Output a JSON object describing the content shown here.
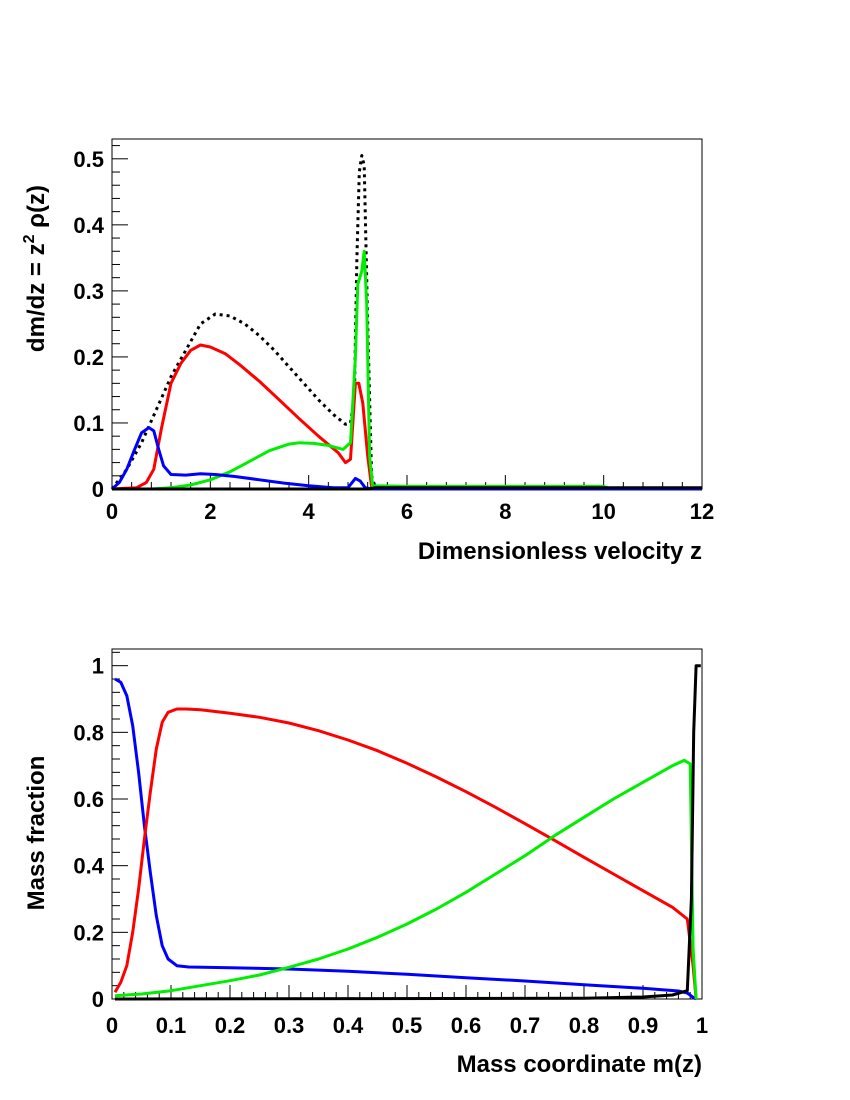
{
  "chart_data": [
    {
      "type": "line",
      "title": "",
      "xlabel": "Dimensionless velocity z",
      "ylabel_main": "dm/dz = z",
      "ylabel_sup": "2",
      "ylabel_rho": " ρ(z)",
      "xlim": [
        0,
        12
      ],
      "ylim": [
        0,
        0.53
      ],
      "x_ticks": [
        0,
        2,
        4,
        6,
        8,
        10,
        12
      ],
      "x_tick_labels": [
        "0",
        "2",
        "4",
        "6",
        "8",
        "10",
        "12"
      ],
      "y_ticks": [
        0,
        0.1,
        0.2,
        0.3,
        0.4,
        0.5
      ],
      "y_tick_labels": [
        "0",
        "0.1",
        "0.2",
        "0.3",
        "0.4",
        "0.5"
      ],
      "grid": false,
      "legend": "none",
      "series": [
        {
          "color": "#000000",
          "dash": "dotted",
          "points": [
            [
              0,
              0
            ],
            [
              0.3,
              0.03
            ],
            [
              0.6,
              0.07
            ],
            [
              0.9,
              0.12
            ],
            [
              1.2,
              0.17
            ],
            [
              1.5,
              0.21
            ],
            [
              1.8,
              0.25
            ],
            [
              2.1,
              0.265
            ],
            [
              2.4,
              0.262
            ],
            [
              2.7,
              0.25
            ],
            [
              3.0,
              0.232
            ],
            [
              3.3,
              0.21
            ],
            [
              3.6,
              0.185
            ],
            [
              3.9,
              0.16
            ],
            [
              4.2,
              0.135
            ],
            [
              4.5,
              0.113
            ],
            [
              4.75,
              0.098
            ],
            [
              4.85,
              0.1
            ],
            [
              4.93,
              0.14
            ],
            [
              4.98,
              0.35
            ],
            [
              5.03,
              0.48
            ],
            [
              5.08,
              0.505
            ],
            [
              5.13,
              0.49
            ],
            [
              5.2,
              0.25
            ],
            [
              5.28,
              0.02
            ],
            [
              5.35,
              0.004
            ],
            [
              6,
              0.003
            ],
            [
              10,
              0.003
            ],
            [
              10.15,
              0
            ],
            [
              12,
              0
            ]
          ]
        },
        {
          "color": "#ff0000",
          "dash": "solid",
          "points": [
            [
              0,
              0
            ],
            [
              0.5,
              0.002
            ],
            [
              0.7,
              0.01
            ],
            [
              0.85,
              0.03
            ],
            [
              1.0,
              0.09
            ],
            [
              1.2,
              0.16
            ],
            [
              1.4,
              0.19
            ],
            [
              1.6,
              0.21
            ],
            [
              1.8,
              0.218
            ],
            [
              2.0,
              0.215
            ],
            [
              2.3,
              0.205
            ],
            [
              2.6,
              0.188
            ],
            [
              3.0,
              0.163
            ],
            [
              3.4,
              0.135
            ],
            [
              3.8,
              0.107
            ],
            [
              4.2,
              0.08
            ],
            [
              4.6,
              0.055
            ],
            [
              4.75,
              0.04
            ],
            [
              4.85,
              0.045
            ],
            [
              4.95,
              0.16
            ],
            [
              5.02,
              0.16
            ],
            [
              5.1,
              0.13
            ],
            [
              5.2,
              0.05
            ],
            [
              5.28,
              0.003
            ],
            [
              5.4,
              0
            ],
            [
              12,
              0
            ]
          ]
        },
        {
          "color": "#00ee00",
          "dash": "solid",
          "points": [
            [
              0,
              0
            ],
            [
              0.8,
              0
            ],
            [
              1.2,
              0.002
            ],
            [
              1.6,
              0.006
            ],
            [
              2.0,
              0.014
            ],
            [
              2.4,
              0.026
            ],
            [
              2.8,
              0.042
            ],
            [
              3.2,
              0.058
            ],
            [
              3.6,
              0.068
            ],
            [
              3.8,
              0.07
            ],
            [
              4.1,
              0.069
            ],
            [
              4.4,
              0.066
            ],
            [
              4.7,
              0.06
            ],
            [
              4.85,
              0.07
            ],
            [
              4.95,
              0.2
            ],
            [
              5.0,
              0.31
            ],
            [
              5.08,
              0.33
            ],
            [
              5.13,
              0.36
            ],
            [
              5.18,
              0.28
            ],
            [
              5.24,
              0.05
            ],
            [
              5.3,
              0.005
            ],
            [
              6,
              0.004
            ],
            [
              10,
              0.004
            ],
            [
              10.15,
              0
            ],
            [
              12,
              0
            ]
          ]
        },
        {
          "color": "#0000ff",
          "dash": "solid",
          "points": [
            [
              0,
              0
            ],
            [
              0.15,
              0.01
            ],
            [
              0.3,
              0.03
            ],
            [
              0.45,
              0.058
            ],
            [
              0.6,
              0.085
            ],
            [
              0.75,
              0.093
            ],
            [
              0.85,
              0.088
            ],
            [
              0.95,
              0.06
            ],
            [
              1.05,
              0.035
            ],
            [
              1.2,
              0.022
            ],
            [
              1.5,
              0.021
            ],
            [
              1.8,
              0.023
            ],
            [
              2.1,
              0.022
            ],
            [
              2.5,
              0.019
            ],
            [
              3.0,
              0.014
            ],
            [
              3.5,
              0.009
            ],
            [
              4.0,
              0.005
            ],
            [
              4.5,
              0.002
            ],
            [
              4.8,
              0.002
            ],
            [
              4.95,
              0.016
            ],
            [
              5.05,
              0.012
            ],
            [
              5.15,
              0.002
            ],
            [
              5.3,
              0
            ],
            [
              12,
              0
            ]
          ]
        },
        {
          "color": "#000000",
          "dash": "solid",
          "points": [
            [
              0,
              0
            ],
            [
              5.25,
              0
            ],
            [
              5.35,
              0.002
            ],
            [
              12,
              0.002
            ]
          ]
        }
      ]
    },
    {
      "type": "line",
      "title": "",
      "xlabel": "Mass coordinate m(z)",
      "ylabel": "Mass fraction",
      "xlim": [
        0,
        1
      ],
      "ylim": [
        0,
        1.05
      ],
      "x_ticks": [
        0,
        0.1,
        0.2,
        0.3,
        0.4,
        0.5,
        0.6,
        0.7,
        0.8,
        0.9,
        1
      ],
      "x_tick_labels": [
        "0",
        "0.1",
        "0.2",
        "0.3",
        "0.4",
        "0.5",
        "0.6",
        "0.7",
        "0.8",
        "0.9",
        "1"
      ],
      "y_ticks": [
        0,
        0.2,
        0.4,
        0.6,
        0.8,
        1
      ],
      "y_tick_labels": [
        "0",
        "0.2",
        "0.4",
        "0.6",
        "0.8",
        "1"
      ],
      "grid": false,
      "legend": "none",
      "series": [
        {
          "color": "#0000ff",
          "dash": "solid",
          "points": [
            [
              0.005,
              0.96
            ],
            [
              0.015,
              0.95
            ],
            [
              0.025,
              0.91
            ],
            [
              0.035,
              0.82
            ],
            [
              0.045,
              0.68
            ],
            [
              0.055,
              0.52
            ],
            [
              0.065,
              0.38
            ],
            [
              0.075,
              0.25
            ],
            [
              0.085,
              0.16
            ],
            [
              0.095,
              0.12
            ],
            [
              0.11,
              0.1
            ],
            [
              0.13,
              0.096
            ],
            [
              0.2,
              0.094
            ],
            [
              0.3,
              0.09
            ],
            [
              0.4,
              0.083
            ],
            [
              0.5,
              0.074
            ],
            [
              0.6,
              0.064
            ],
            [
              0.7,
              0.054
            ],
            [
              0.8,
              0.043
            ],
            [
              0.9,
              0.032
            ],
            [
              0.96,
              0.024
            ],
            [
              0.975,
              0.018
            ],
            [
              0.985,
              0.005
            ],
            [
              0.99,
              0
            ]
          ]
        },
        {
          "color": "#ff0000",
          "dash": "solid",
          "points": [
            [
              0.005,
              0.02
            ],
            [
              0.015,
              0.05
            ],
            [
              0.025,
              0.1
            ],
            [
              0.035,
              0.2
            ],
            [
              0.045,
              0.33
            ],
            [
              0.055,
              0.48
            ],
            [
              0.065,
              0.62
            ],
            [
              0.075,
              0.75
            ],
            [
              0.085,
              0.83
            ],
            [
              0.095,
              0.86
            ],
            [
              0.11,
              0.87
            ],
            [
              0.125,
              0.87
            ],
            [
              0.15,
              0.868
            ],
            [
              0.2,
              0.857
            ],
            [
              0.25,
              0.845
            ],
            [
              0.3,
              0.828
            ],
            [
              0.35,
              0.805
            ],
            [
              0.4,
              0.777
            ],
            [
              0.45,
              0.745
            ],
            [
              0.5,
              0.707
            ],
            [
              0.55,
              0.666
            ],
            [
              0.6,
              0.622
            ],
            [
              0.65,
              0.575
            ],
            [
              0.7,
              0.526
            ],
            [
              0.75,
              0.476
            ],
            [
              0.8,
              0.425
            ],
            [
              0.85,
              0.375
            ],
            [
              0.9,
              0.325
            ],
            [
              0.95,
              0.275
            ],
            [
              0.975,
              0.24
            ],
            [
              0.985,
              0.1
            ],
            [
              0.99,
              0
            ]
          ]
        },
        {
          "color": "#00ee00",
          "dash": "solid",
          "points": [
            [
              0.005,
              0.01
            ],
            [
              0.05,
              0.015
            ],
            [
              0.1,
              0.025
            ],
            [
              0.15,
              0.04
            ],
            [
              0.2,
              0.055
            ],
            [
              0.25,
              0.072
            ],
            [
              0.3,
              0.095
            ],
            [
              0.35,
              0.12
            ],
            [
              0.4,
              0.15
            ],
            [
              0.45,
              0.185
            ],
            [
              0.5,
              0.225
            ],
            [
              0.55,
              0.27
            ],
            [
              0.6,
              0.32
            ],
            [
              0.65,
              0.375
            ],
            [
              0.7,
              0.43
            ],
            [
              0.75,
              0.49
            ],
            [
              0.8,
              0.545
            ],
            [
              0.85,
              0.6
            ],
            [
              0.9,
              0.65
            ],
            [
              0.95,
              0.7
            ],
            [
              0.97,
              0.716
            ],
            [
              0.98,
              0.705
            ],
            [
              0.985,
              0.15
            ],
            [
              0.99,
              0
            ]
          ]
        },
        {
          "color": "#000000",
          "dash": "solid",
          "points": [
            [
              0.005,
              0
            ],
            [
              0.8,
              0.002
            ],
            [
              0.9,
              0.006
            ],
            [
              0.95,
              0.012
            ],
            [
              0.975,
              0.025
            ],
            [
              0.982,
              0.3
            ],
            [
              0.986,
              0.8
            ],
            [
              0.99,
              1.0
            ],
            [
              0.998,
              1.0
            ]
          ]
        }
      ]
    }
  ]
}
